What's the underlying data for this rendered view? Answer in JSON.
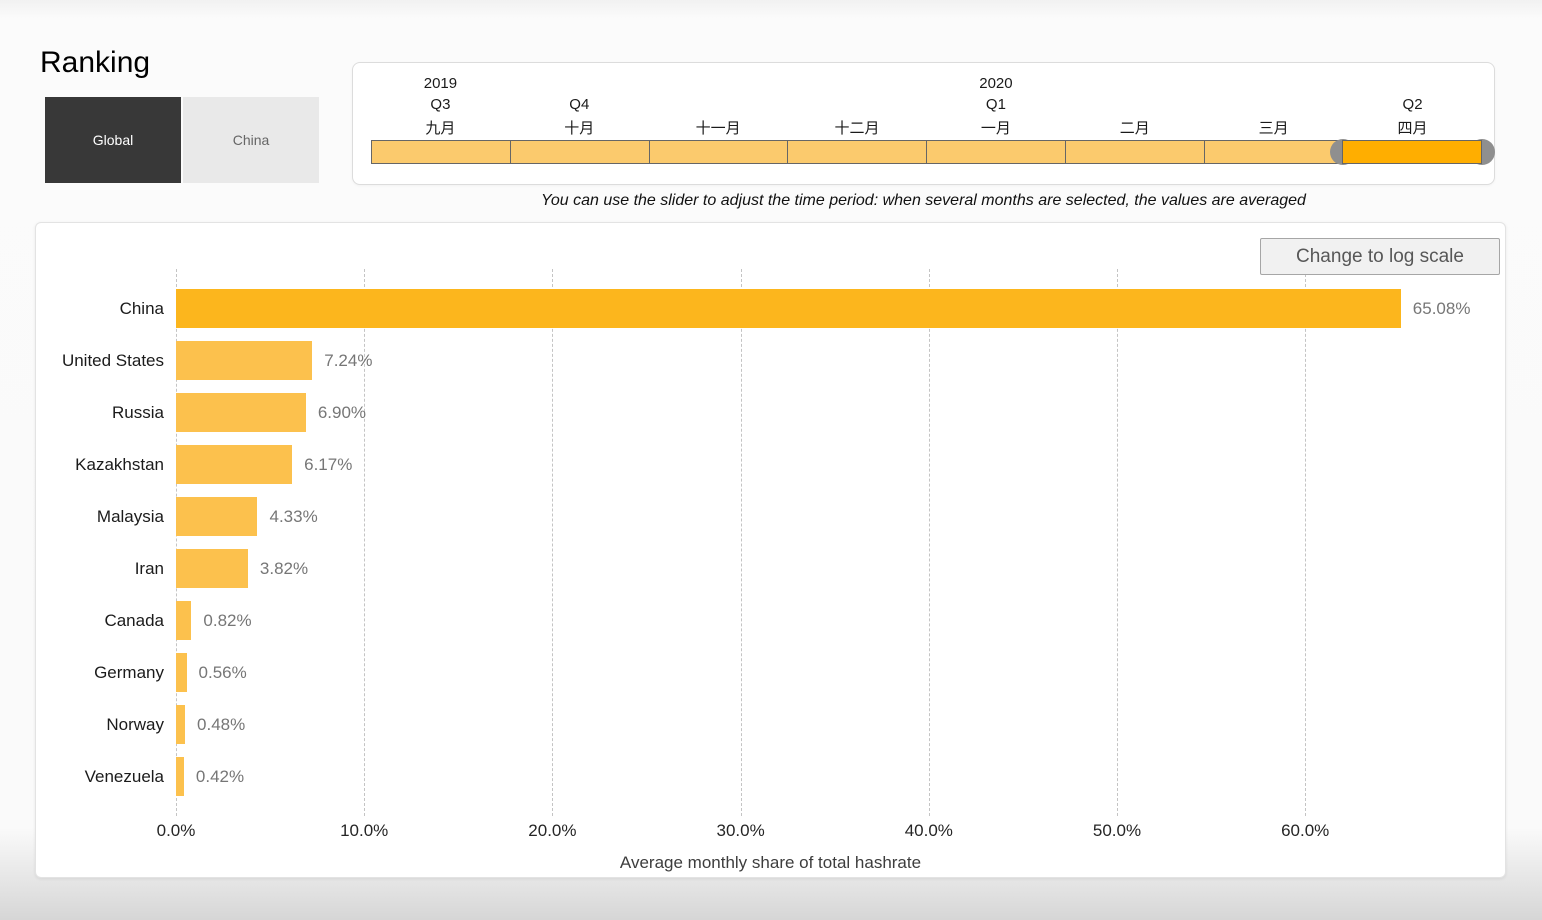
{
  "page": {
    "title": "Ranking"
  },
  "scope_toggle": {
    "options": [
      {
        "label": "Global",
        "selected": true
      },
      {
        "label": "China",
        "selected": false
      }
    ]
  },
  "time_slider": {
    "note": "You can use the slider to adjust the time period: when several months are selected, the values are averaged",
    "months": [
      {
        "year": "2019",
        "quarter": "Q3",
        "label": "九月",
        "selected": false
      },
      {
        "quarter": "Q4",
        "label": "十月",
        "selected": false
      },
      {
        "label": "十一月",
        "selected": false
      },
      {
        "label": "十二月",
        "selected": false
      },
      {
        "year": "2020",
        "quarter": "Q1",
        "label": "一月",
        "selected": false
      },
      {
        "label": "二月",
        "selected": false
      },
      {
        "label": "三月",
        "selected": false
      },
      {
        "quarter": "Q2",
        "label": "四月",
        "selected": true
      }
    ],
    "colors": {
      "segment": "#fbca6d",
      "segment_selected": "#ffae00",
      "handle": "#8f8f8f"
    }
  },
  "chart_panel": {
    "log_button": "Change to log scale"
  },
  "chart_data": {
    "type": "bar",
    "orientation": "horizontal",
    "categories": [
      "China",
      "United States",
      "Russia",
      "Kazakhstan",
      "Malaysia",
      "Iran",
      "Canada",
      "Germany",
      "Norway",
      "Venezuela"
    ],
    "values": [
      65.08,
      7.24,
      6.9,
      6.17,
      4.33,
      3.82,
      0.82,
      0.56,
      0.48,
      0.42
    ],
    "value_labels": [
      "65.08%",
      "7.24%",
      "6.90%",
      "6.17%",
      "4.33%",
      "3.82%",
      "0.82%",
      "0.56%",
      "0.48%",
      "0.42%"
    ],
    "xlabel": "Average monthly share of total hashrate",
    "x_ticks": [
      "0.0%",
      "10.0%",
      "20.0%",
      "30.0%",
      "40.0%",
      "50.0%",
      "60.0%"
    ],
    "x_tick_values": [
      0,
      10,
      20,
      30,
      40,
      50,
      60
    ],
    "xlim": [
      0,
      65.5
    ],
    "grid": "vertical-dashed",
    "legend": "none",
    "bar_color": "#fcc14d",
    "highlight_color": "#fcb61d",
    "highlight_category": "China",
    "value_label_color": "#767676"
  }
}
